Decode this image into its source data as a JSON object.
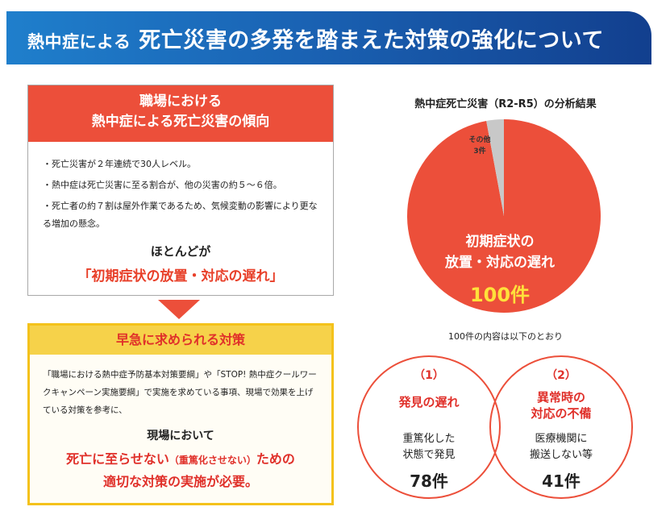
{
  "banner": {
    "title_part1": "熱中症による",
    "title_part2": "死亡災害の多発を踏まえた対策の強化について"
  },
  "trend": {
    "header_line1": "職場における",
    "header_line2": "熱中症による死亡災害の傾向",
    "bullets": [
      "・死亡災害が２年連続で30人レベル。",
      "・熱中症は死亡災害に至る割合が、他の災害の約５～６倍。",
      "・死亡者の約７割は屋外作業であるため、気候変動の影響により更なる増加の懸念。"
    ],
    "mostly": "ほとんどが",
    "main_cause": "「初期症状の放置・対応の遅れ」"
  },
  "measures": {
    "header": "早急に求められる対策",
    "body": "「職場における熱中症予防基本対策要綱」や「STOP! 熱中症クールワークキャンペーン実施要綱」で実施を求めている事項、現場で効果を上げている対策を参考に、",
    "onsite": "現場において",
    "conclusion_main": "死亡に至らせない",
    "conclusion_paren": "（重篤化させない）",
    "conclusion_tail": "ための",
    "conclusion_line2": "適切な対策の実施が必要。"
  },
  "chart_data": {
    "type": "pie",
    "title": "熱中症死亡災害（R2-R5）の分析結果",
    "slices": [
      {
        "label_line1": "初期症状の",
        "label_line2": "放置・対応の遅れ",
        "value": 100,
        "value_label": "100件",
        "color": "#ec4f3a"
      },
      {
        "label_line1": "その他",
        "label_line2": "",
        "value": 3,
        "value_label": "3件",
        "color": "#c8c8c8"
      }
    ],
    "caption": "100件の内容は以下のとおり"
  },
  "breakdown": [
    {
      "num": "（1）",
      "title_line1": "発見の遅れ",
      "title_line2": "",
      "desc_line1": "重篤化した",
      "desc_line2": "状態で発見",
      "count": "78件"
    },
    {
      "num": "（2）",
      "title_line1": "異常時の",
      "title_line2": "対応の不備",
      "desc_line1": "医療機関に",
      "desc_line2": "搬送しない等",
      "count": "41件"
    }
  ],
  "colors": {
    "accent_red": "#ec4f3a",
    "title_red": "#e0302a",
    "banner_blue": "#1a63b4",
    "yellow": "#f4c21b",
    "gray": "#c8c8c8",
    "highlight_yellow": "#ffe13b"
  }
}
